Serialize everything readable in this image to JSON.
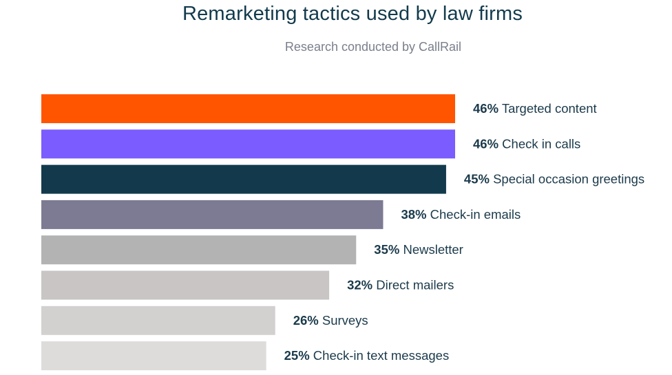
{
  "title": "Remarketing tactics used by law firms",
  "subtitle": "Research conducted by CallRail",
  "chart_data": {
    "type": "bar",
    "orientation": "horizontal",
    "title": "Remarketing tactics used by law firms",
    "subtitle": "Research conducted by CallRail",
    "xlim": [
      0,
      46
    ],
    "categories": [
      "Targeted content",
      "Check in calls",
      "Special occasion greetings",
      "Check-in emails",
      "Newsletter",
      "Direct mailers",
      "Surveys",
      "Check-in text messages"
    ],
    "values": [
      46,
      46,
      45,
      38,
      35,
      32,
      26,
      25
    ],
    "value_labels": [
      "46%",
      "46%",
      "45%",
      "38%",
      "35%",
      "32%",
      "26%",
      "25%"
    ],
    "colors": [
      "#ff5500",
      "#7b5cff",
      "#123a4c",
      "#7c7b93",
      "#b3b3b3",
      "#c8c5c4",
      "#d3d0d0",
      "#dedbdb"
    ],
    "grid": false,
    "legend": "none"
  }
}
